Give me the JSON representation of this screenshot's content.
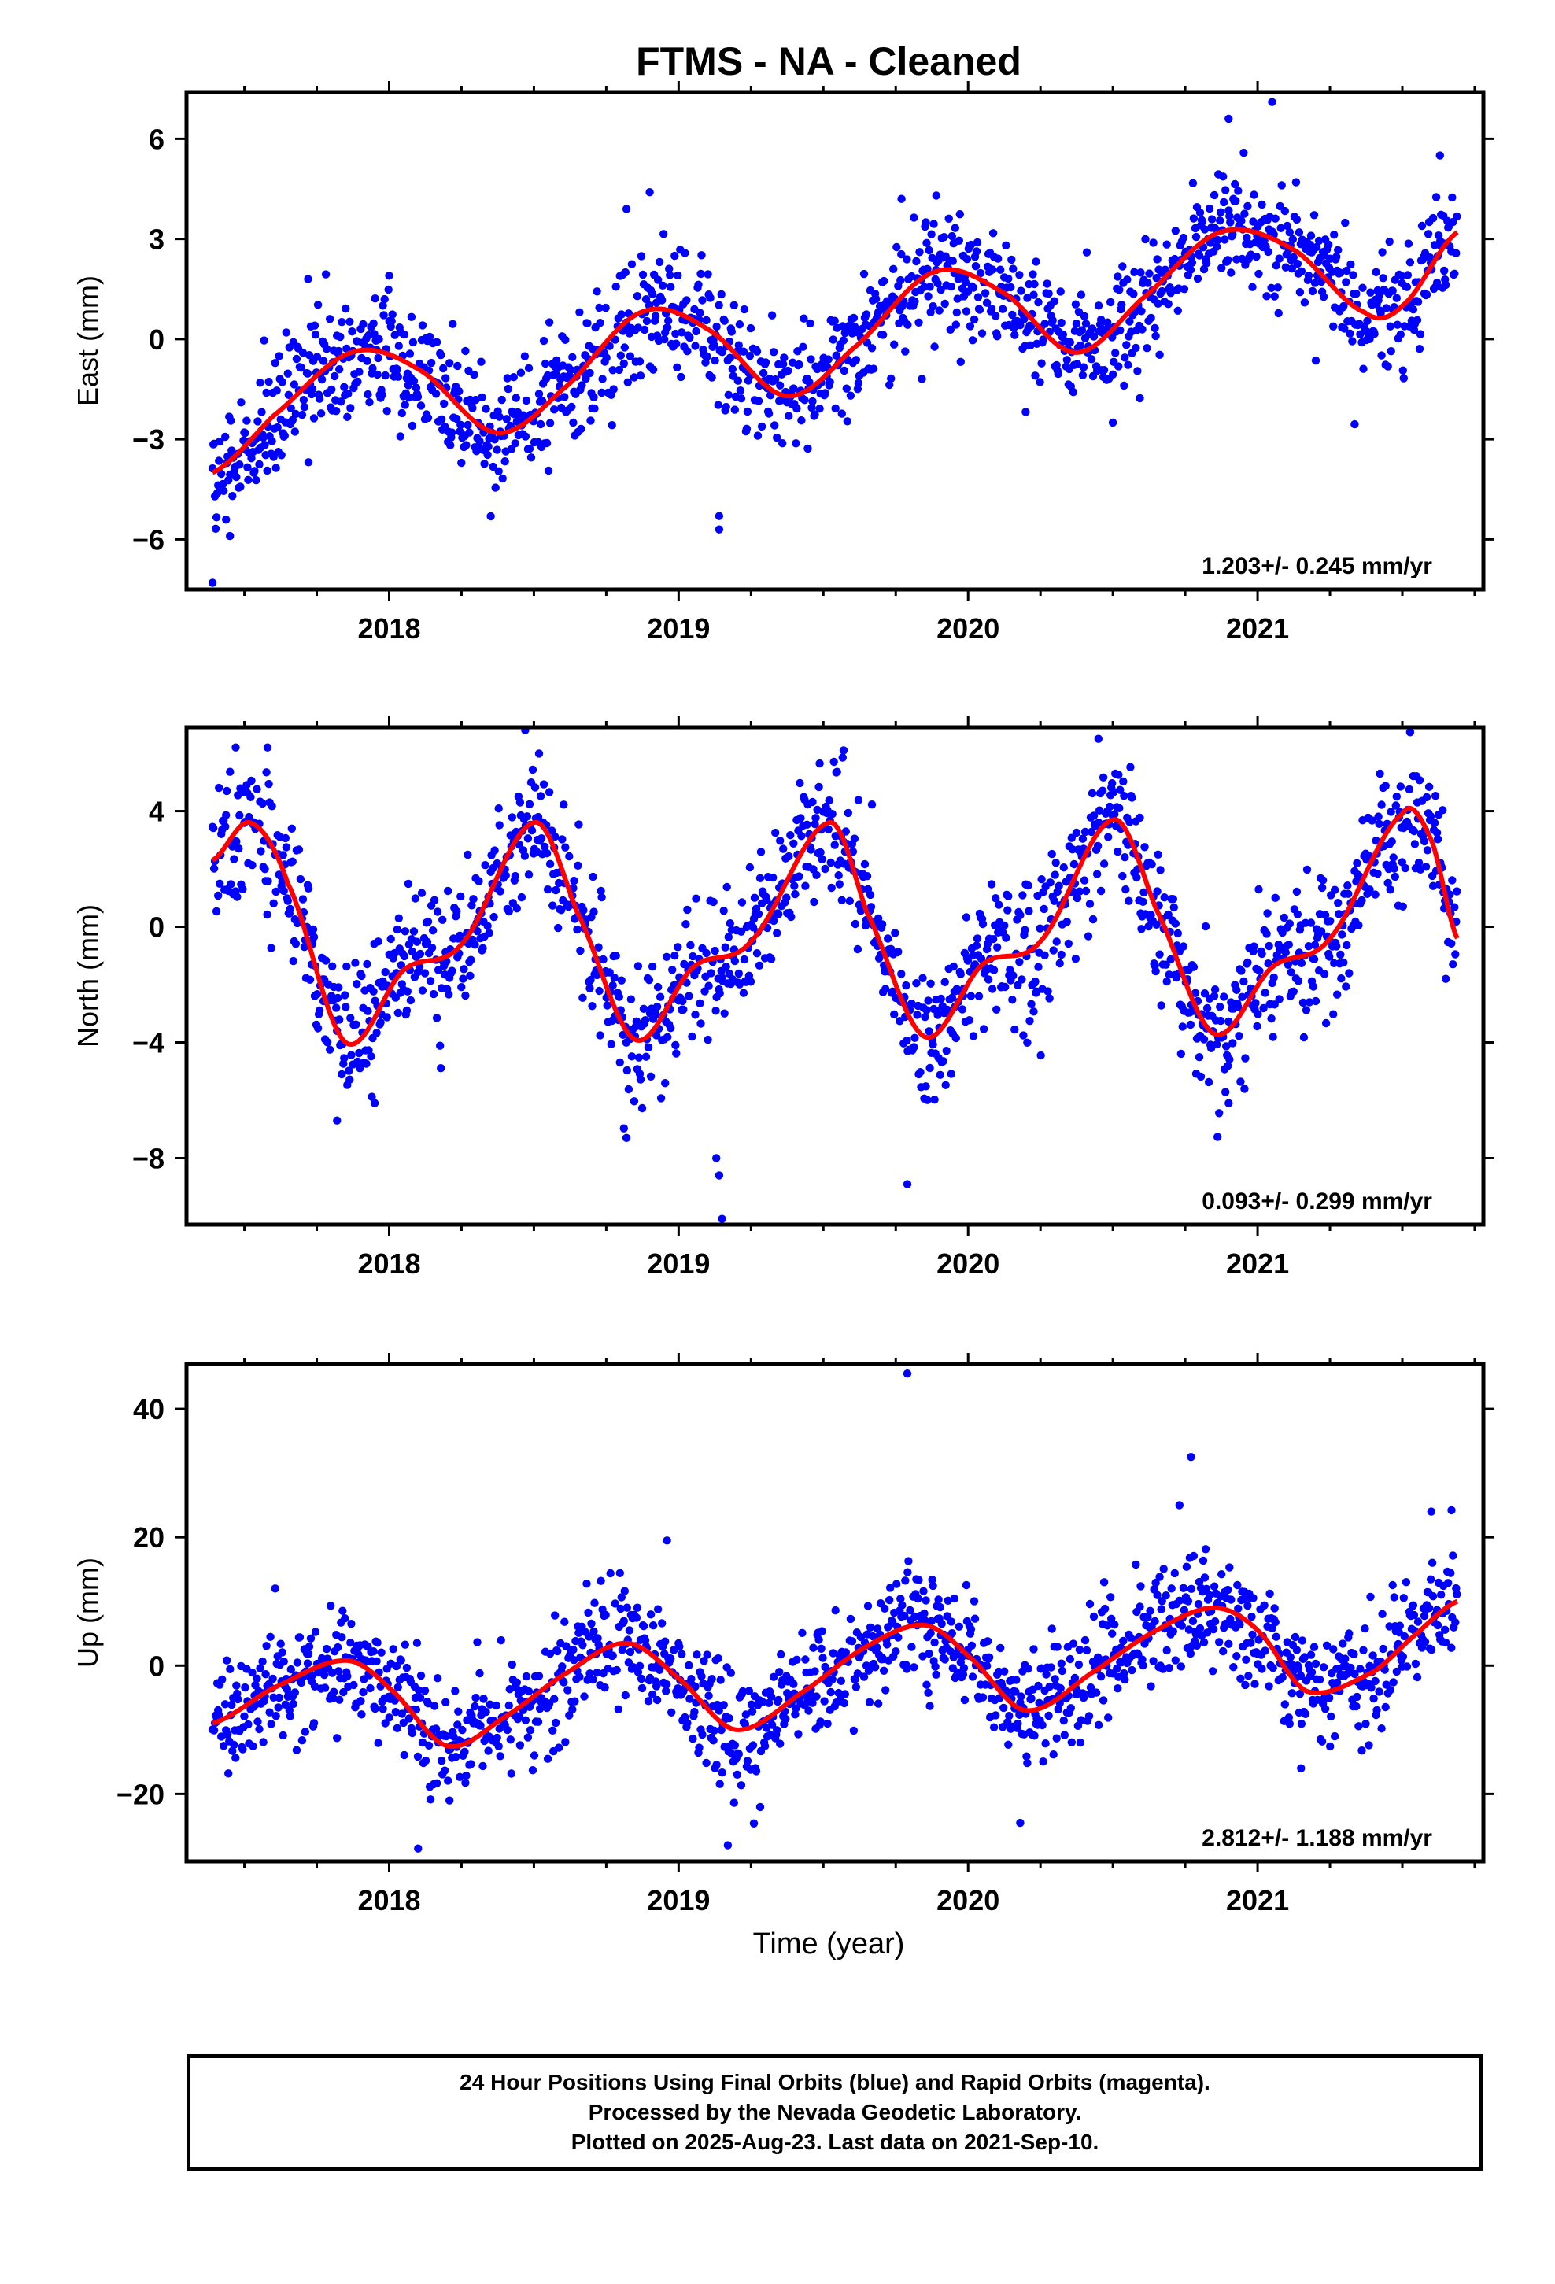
{
  "title": "FTMS  - NA - Cleaned",
  "xlabel": "Time (year)",
  "colors": {
    "points": "#0000ff",
    "fit": "#ff0000",
    "frame": "#000000"
  },
  "footer": {
    "line1": "24 Hour Positions Using Final Orbits (blue) and Rapid Orbits (magenta).",
    "line2": "Processed by the Nevada Geodetic Laboratory.",
    "line3": "Plotted on 2025-Aug-23. Last data on 2021-Sep-10."
  },
  "chart_data": [
    {
      "type": "scatter",
      "panel": "east",
      "ylabel": "East (mm)",
      "xlim": [
        2017.3,
        2021.78
      ],
      "ylim": [
        -7.5,
        7.4
      ],
      "xticks": [
        2018,
        2019,
        2020,
        2021
      ],
      "yticks": [
        -6,
        -3,
        0,
        3,
        6
      ],
      "rate_label": "1.203+/- 0.245 mm/yr",
      "time_range": [
        2017.39,
        2021.69
      ],
      "trend_mm_per_yr": 1.203,
      "fit_knots": {
        "x": [
          2017.39,
          2017.6,
          2017.87,
          2018.1,
          2018.37,
          2018.6,
          2018.87,
          2019.1,
          2019.37,
          2019.6,
          2019.88,
          2020.12,
          2020.37,
          2020.6,
          2020.87,
          2021.12,
          2021.37,
          2021.5,
          2021.69
        ],
        "y": [
          -4.0,
          -2.3,
          -0.4,
          -0.9,
          -2.8,
          -1.5,
          0.8,
          0.3,
          -1.7,
          -0.3,
          2.0,
          1.4,
          -0.4,
          1.2,
          3.2,
          2.7,
          0.8,
          1.0,
          3.2
        ]
      },
      "scatter_sd": 0.9,
      "outliers": [
        {
          "x": 2017.39,
          "y": -7.3
        },
        {
          "x": 2017.45,
          "y": -5.9
        },
        {
          "x": 2019.14,
          "y": -5.7
        },
        {
          "x": 2019.14,
          "y": -5.3
        },
        {
          "x": 2018.82,
          "y": 3.9
        },
        {
          "x": 2018.9,
          "y": 4.4
        },
        {
          "x": 2019.77,
          "y": 4.2
        },
        {
          "x": 2019.89,
          "y": 4.3
        },
        {
          "x": 2020.9,
          "y": 6.6
        },
        {
          "x": 2021.05,
          "y": 7.1
        },
        {
          "x": 2021.63,
          "y": 5.5
        },
        {
          "x": 2020.5,
          "y": -2.5
        },
        {
          "x": 2018.0,
          "y": 1.9
        },
        {
          "x": 2017.72,
          "y": 1.8
        }
      ]
    },
    {
      "type": "scatter",
      "panel": "north",
      "ylabel": "North (mm)",
      "xlim": [
        2017.3,
        2021.78
      ],
      "ylim": [
        -10.3,
        6.9
      ],
      "xticks": [
        2018,
        2019,
        2020,
        2021
      ],
      "yticks": [
        -8,
        -4,
        0,
        4
      ],
      "rate_label": "0.093+/- 0.299 mm/yr",
      "time_range": [
        2017.39,
        2021.69
      ],
      "trend_mm_per_yr": 0.093,
      "fit_knots": {
        "x": [
          2017.39,
          2017.52,
          2017.65,
          2017.85,
          2018.05,
          2018.25,
          2018.5,
          2018.65,
          2018.85,
          2019.05,
          2019.25,
          2019.52,
          2019.65,
          2019.85,
          2020.05,
          2020.25,
          2020.5,
          2020.65,
          2020.85,
          2021.05,
          2021.25,
          2021.5,
          2021.6,
          2021.69
        ],
        "y": [
          2.3,
          3.6,
          1.5,
          -4.0,
          -1.5,
          -0.6,
          3.6,
          0.5,
          -3.9,
          -1.4,
          -0.5,
          3.6,
          0.5,
          -3.8,
          -1.3,
          -0.5,
          3.7,
          0.6,
          -3.7,
          -1.4,
          -0.4,
          3.9,
          3.0,
          -0.4
        ]
      },
      "scatter_sd": 1.2,
      "outliers": [
        {
          "x": 2017.47,
          "y": 6.2
        },
        {
          "x": 2017.58,
          "y": 6.2
        },
        {
          "x": 2018.47,
          "y": 6.8
        },
        {
          "x": 2018.82,
          "y": -7.3
        },
        {
          "x": 2019.13,
          "y": -8.0
        },
        {
          "x": 2019.14,
          "y": -8.6
        },
        {
          "x": 2019.15,
          "y": -10.1
        },
        {
          "x": 2019.79,
          "y": -8.9
        },
        {
          "x": 2019.57,
          "y": 6.1
        },
        {
          "x": 2020.45,
          "y": 6.5
        },
        {
          "x": 2020.9,
          "y": -6.1
        },
        {
          "x": 2017.82,
          "y": -6.7
        },
        {
          "x": 2017.95,
          "y": -6.1
        },
        {
          "x": 2021.65,
          "y": -1.8
        }
      ]
    },
    {
      "type": "scatter",
      "panel": "up",
      "ylabel": "Up (mm)",
      "xlim": [
        2017.3,
        2021.78
      ],
      "ylim": [
        -30.5,
        47
      ],
      "xticks": [
        2018,
        2019,
        2020,
        2021
      ],
      "yticks": [
        -20,
        0,
        20,
        40
      ],
      "rate_label": "2.812+/- 1.188 mm/yr",
      "time_range": [
        2017.39,
        2021.69
      ],
      "trend_mm_per_yr": 2.812,
      "fit_knots": {
        "x": [
          2017.39,
          2017.6,
          2017.85,
          2018.0,
          2018.2,
          2018.4,
          2018.6,
          2018.82,
          2019.0,
          2019.2,
          2019.45,
          2019.65,
          2019.85,
          2020.0,
          2020.2,
          2020.45,
          2020.65,
          2020.85,
          2021.0,
          2021.17,
          2021.4,
          2021.55,
          2021.69
        ],
        "y": [
          -9.0,
          -3.5,
          0.8,
          -3.5,
          -12.5,
          -8.0,
          -1.5,
          3.5,
          -2.0,
          -10.0,
          -3.5,
          3.0,
          6.3,
          1.5,
          -7.0,
          -0.5,
          5.5,
          9.0,
          5.5,
          -4.0,
          -1.0,
          5.0,
          10.0
        ]
      },
      "scatter_sd": 4.6,
      "outliers": [
        {
          "x": 2019.79,
          "y": 45.5
        },
        {
          "x": 2020.77,
          "y": 32.5
        },
        {
          "x": 2020.73,
          "y": 25.0
        },
        {
          "x": 2021.6,
          "y": 24.0
        },
        {
          "x": 2021.67,
          "y": 24.2
        },
        {
          "x": 2018.1,
          "y": -28.5
        },
        {
          "x": 2019.17,
          "y": -28.0
        },
        {
          "x": 2020.18,
          "y": -24.5
        },
        {
          "x": 2018.96,
          "y": 19.5
        },
        {
          "x": 2020.47,
          "y": 13.0
        },
        {
          "x": 2021.15,
          "y": -16.0
        }
      ]
    }
  ]
}
